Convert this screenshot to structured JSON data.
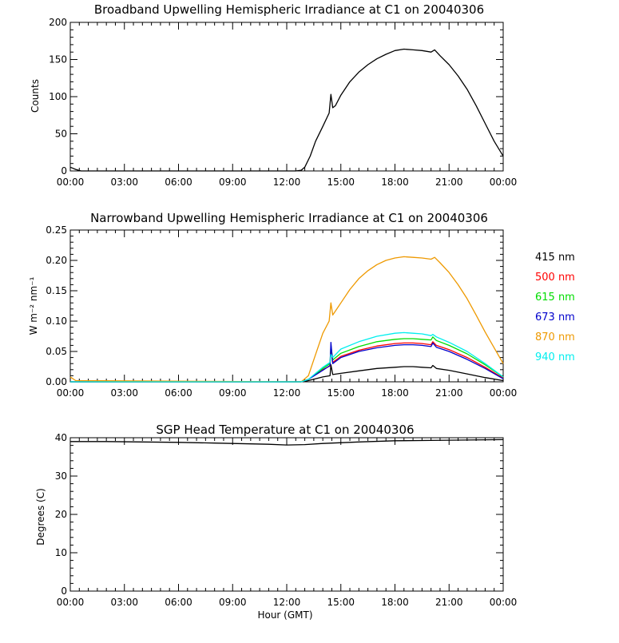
{
  "chart_data": [
    {
      "type": "line",
      "title": "Broadband Upwelling Hemispheric Irradiance at C1 on 20040306",
      "xlabel": "",
      "ylabel": "Counts",
      "xlim": [
        0,
        24
      ],
      "ylim": [
        0,
        200
      ],
      "x_tick_labels": [
        "00:00",
        "03:00",
        "06:00",
        "09:00",
        "12:00",
        "15:00",
        "18:00",
        "21:00",
        "00:00"
      ],
      "y_ticks": [
        0,
        50,
        100,
        150,
        200
      ],
      "series": [
        {
          "color": "#000000",
          "x": [
            0,
            0.3,
            0.6,
            12.5,
            12.8,
            13.0,
            13.3,
            13.6,
            14.0,
            14.35,
            14.45,
            14.55,
            14.7,
            15.0,
            15.5,
            16.0,
            16.5,
            17.0,
            17.5,
            18.0,
            18.5,
            19.0,
            19.5,
            20.0,
            20.2,
            20.5,
            21.0,
            21.5,
            22.0,
            22.5,
            23.0,
            23.5,
            24.0
          ],
          "y": [
            5,
            2,
            0,
            0,
            1,
            5,
            20,
            40,
            60,
            78,
            103,
            85,
            88,
            102,
            120,
            133,
            143,
            151,
            157,
            162,
            164,
            163,
            162,
            160,
            163,
            155,
            143,
            128,
            110,
            88,
            64,
            40,
            20
          ]
        }
      ]
    },
    {
      "type": "line",
      "title": "Narrowband Upwelling Hemispheric Irradiance at C1 on 20040306",
      "xlabel": "",
      "ylabel": "W m⁻² nm⁻¹",
      "xlim": [
        0,
        24
      ],
      "ylim": [
        0,
        0.25
      ],
      "x_tick_labels": [
        "00:00",
        "03:00",
        "06:00",
        "09:00",
        "12:00",
        "15:00",
        "18:00",
        "21:00",
        "00:00"
      ],
      "y_tick_labels": [
        "0.00",
        "0.05",
        "0.10",
        "0.15",
        "0.20",
        "0.25"
      ],
      "series": [
        {
          "name": "415 nm",
          "color": "#000000",
          "x": [
            0,
            12.8,
            13.2,
            14.0,
            14.4,
            14.45,
            14.55,
            15.0,
            16.0,
            17.0,
            18.0,
            18.5,
            19.0,
            19.5,
            20.0,
            20.1,
            20.3,
            21.0,
            22.0,
            23.0,
            24.0
          ],
          "y": [
            0,
            0,
            0.002,
            0.008,
            0.01,
            0.028,
            0.012,
            0.014,
            0.018,
            0.022,
            0.024,
            0.025,
            0.025,
            0.024,
            0.023,
            0.027,
            0.022,
            0.019,
            0.013,
            0.007,
            0.002
          ]
        },
        {
          "name": "500 nm",
          "color": "#ff0000",
          "x": [
            0,
            12.8,
            13.2,
            14.0,
            14.4,
            14.45,
            14.55,
            15.0,
            16.0,
            17.0,
            18.0,
            18.5,
            19.0,
            19.5,
            20.0,
            20.1,
            20.3,
            21.0,
            22.0,
            23.0,
            24.0
          ],
          "y": [
            0,
            0,
            0.004,
            0.02,
            0.026,
            0.055,
            0.032,
            0.042,
            0.052,
            0.059,
            0.063,
            0.064,
            0.064,
            0.063,
            0.061,
            0.066,
            0.06,
            0.053,
            0.04,
            0.024,
            0.006
          ]
        },
        {
          "name": "615 nm",
          "color": "#00dd00",
          "x": [
            0,
            12.8,
            13.2,
            14.0,
            14.4,
            14.45,
            14.55,
            15.0,
            16.0,
            17.0,
            18.0,
            18.5,
            19.0,
            19.5,
            20.0,
            20.1,
            20.3,
            21.0,
            22.0,
            23.0,
            24.0
          ],
          "y": [
            0,
            0,
            0.004,
            0.022,
            0.03,
            0.06,
            0.036,
            0.047,
            0.058,
            0.066,
            0.07,
            0.071,
            0.071,
            0.07,
            0.069,
            0.074,
            0.068,
            0.06,
            0.046,
            0.028,
            0.008
          ]
        },
        {
          "name": "673 nm",
          "color": "#0000cc",
          "x": [
            0,
            12.8,
            13.2,
            14.0,
            14.4,
            14.45,
            14.55,
            15.0,
            16.0,
            17.0,
            18.0,
            18.5,
            19.0,
            19.5,
            20.0,
            20.1,
            20.3,
            21.0,
            22.0,
            23.0,
            24.0
          ],
          "y": [
            0,
            0,
            0.004,
            0.019,
            0.027,
            0.065,
            0.03,
            0.04,
            0.05,
            0.056,
            0.06,
            0.061,
            0.061,
            0.06,
            0.058,
            0.064,
            0.057,
            0.05,
            0.037,
            0.022,
            0.005
          ]
        },
        {
          "name": "870 nm",
          "color": "#ee9900",
          "x": [
            0,
            0.3,
            12.8,
            13.2,
            13.6,
            14.0,
            14.35,
            14.45,
            14.55,
            15.0,
            15.5,
            16.0,
            16.5,
            17.0,
            17.5,
            18.0,
            18.5,
            19.0,
            19.5,
            20.0,
            20.2,
            20.5,
            21.0,
            21.5,
            22.0,
            22.5,
            23.0,
            23.5,
            24.0
          ],
          "y": [
            0.008,
            0.002,
            0,
            0.01,
            0.045,
            0.08,
            0.1,
            0.13,
            0.11,
            0.13,
            0.152,
            0.17,
            0.183,
            0.193,
            0.2,
            0.204,
            0.206,
            0.205,
            0.204,
            0.202,
            0.205,
            0.196,
            0.18,
            0.16,
            0.137,
            0.11,
            0.082,
            0.056,
            0.03
          ]
        },
        {
          "name": "940 nm",
          "color": "#00eeee",
          "x": [
            0,
            12.8,
            13.2,
            14.0,
            14.4,
            14.45,
            14.55,
            15.0,
            16.0,
            17.0,
            18.0,
            18.5,
            19.0,
            19.5,
            20.0,
            20.1,
            20.3,
            21.0,
            22.0,
            23.0,
            24.0
          ],
          "y": [
            0,
            0,
            0.004,
            0.024,
            0.032,
            0.045,
            0.04,
            0.054,
            0.066,
            0.075,
            0.08,
            0.081,
            0.08,
            0.079,
            0.076,
            0.078,
            0.074,
            0.065,
            0.05,
            0.03,
            0.008
          ]
        }
      ]
    },
    {
      "type": "line",
      "title": "SGP Head Temperature at C1 on 20040306",
      "xlabel": "Hour (GMT)",
      "ylabel": "Degrees (C)",
      "xlim": [
        0,
        24
      ],
      "ylim": [
        0,
        40
      ],
      "x_tick_labels": [
        "00:00",
        "03:00",
        "06:00",
        "09:00",
        "12:00",
        "15:00",
        "18:00",
        "21:00",
        "00:00"
      ],
      "y_ticks": [
        0,
        10,
        20,
        30,
        40
      ],
      "series": [
        {
          "color": "#000000",
          "x": [
            0,
            2,
            4,
            6,
            8,
            10,
            11,
            12,
            13,
            14,
            16,
            18,
            20,
            22,
            24
          ],
          "y": [
            39.0,
            39.0,
            38.9,
            38.8,
            38.6,
            38.4,
            38.3,
            38.1,
            38.2,
            38.5,
            38.9,
            39.2,
            39.3,
            39.4,
            39.5
          ]
        }
      ]
    }
  ]
}
